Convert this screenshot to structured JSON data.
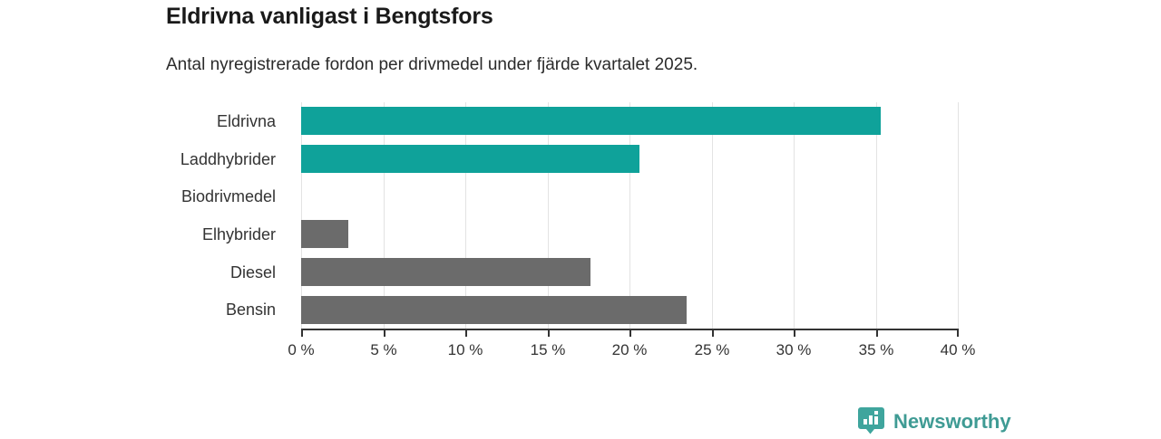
{
  "header": {
    "title": "Eldrivna vanligast i Bengtsfors",
    "subtitle": "Antal nyregistrerade fordon per drivmedel under fjärde kvartalet 2025."
  },
  "chart_data": {
    "type": "bar",
    "orientation": "horizontal",
    "title": "Eldrivna vanligast i Bengtsfors",
    "subtitle": "Antal nyregistrerade fordon per drivmedel under fjärde kvartalet 2025.",
    "categories": [
      "Eldrivna",
      "Laddhybrider",
      "Biodrivmedel",
      "Elhybrider",
      "Diesel",
      "Bensin"
    ],
    "values": [
      35.3,
      20.6,
      0,
      2.9,
      17.6,
      23.5
    ],
    "bar_colors": [
      "#0fa29a",
      "#0fa29a",
      "#6b6b6b",
      "#6b6b6b",
      "#6b6b6b",
      "#6b6b6b"
    ],
    "xlabel": "",
    "ylabel": "",
    "xlim": [
      0,
      40
    ],
    "x_ticks": [
      0,
      5,
      10,
      15,
      20,
      25,
      30,
      35,
      40
    ],
    "x_tick_labels": [
      "0 %",
      "5 %",
      "10 %",
      "15 %",
      "20 %",
      "25 %",
      "30 %",
      "35 %",
      "40 %"
    ],
    "grid": "vertical-gridlines-on",
    "legend": "none"
  },
  "colors": {
    "highlight_teal": "#0fa29a",
    "neutral_gray": "#6b6b6b",
    "gridline": "#e3e3e3",
    "axis": "#333333",
    "brand_teal": "#3f9b94",
    "logo_icon_teal": "#3fa59d"
  },
  "footer": {
    "brand": "Newsworthy",
    "logo_icon": "bar-chart-speech-bubble-icon"
  }
}
